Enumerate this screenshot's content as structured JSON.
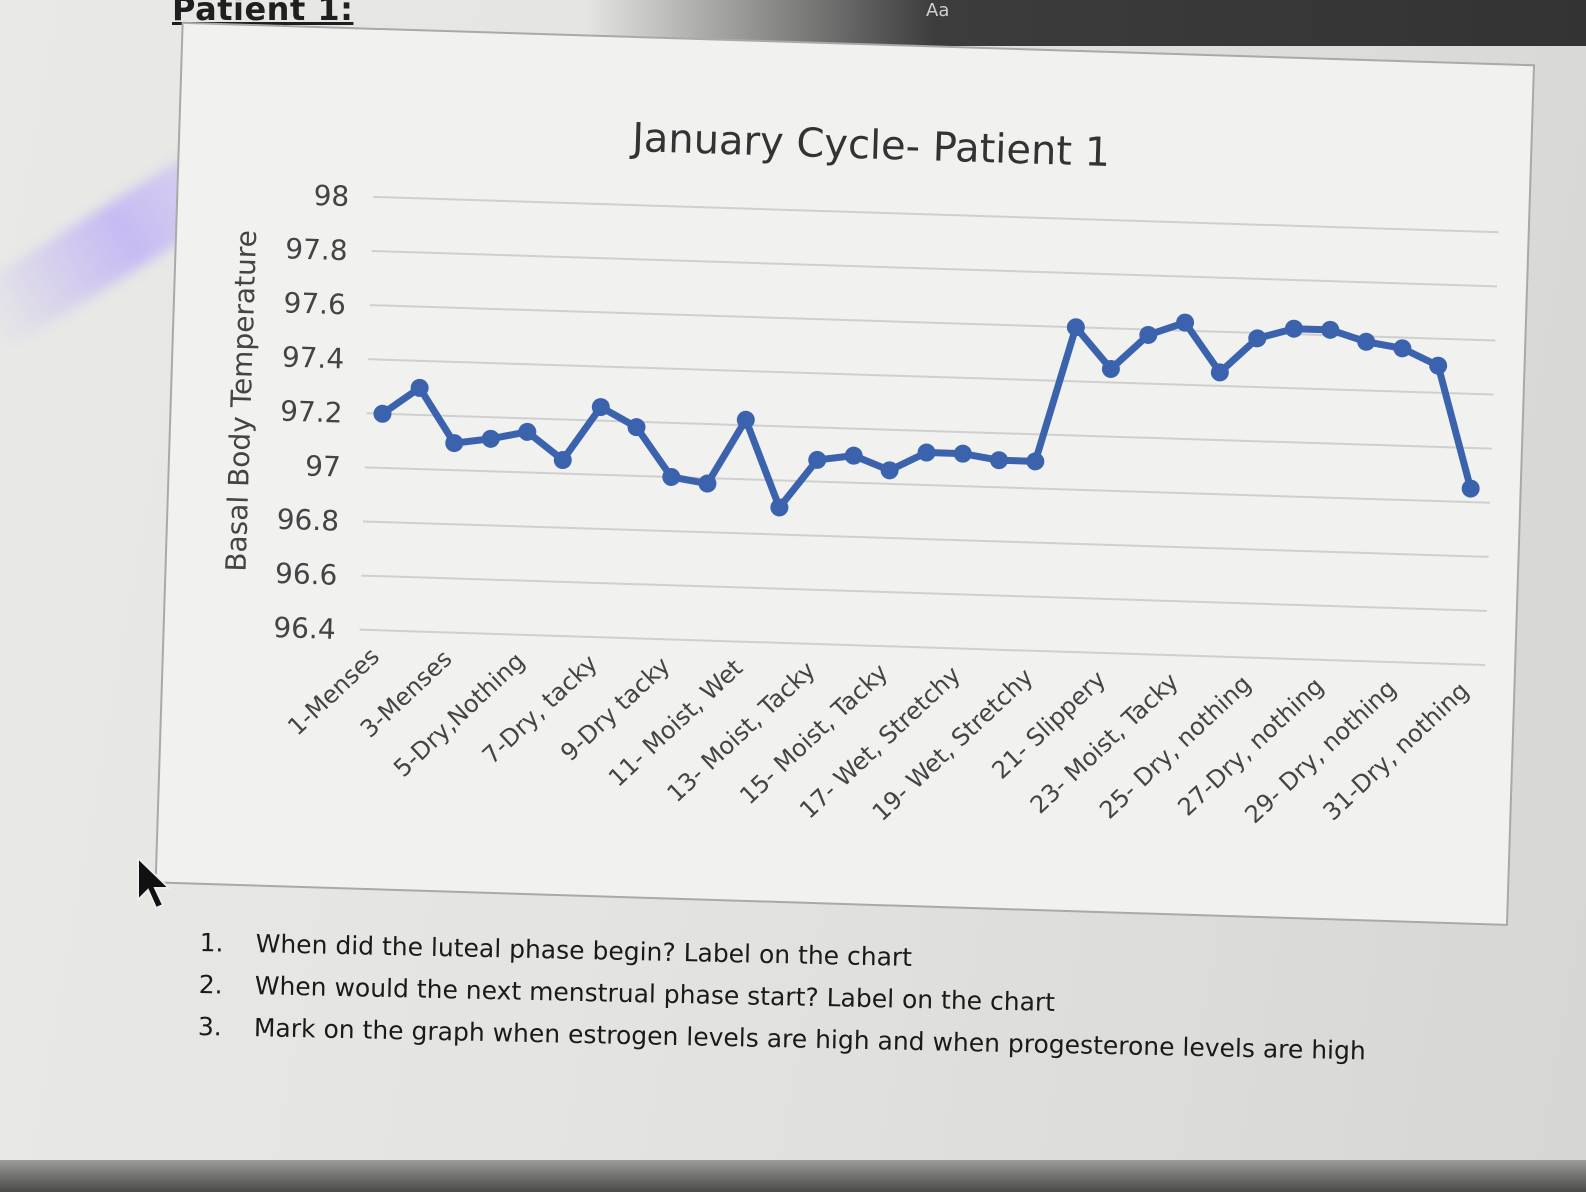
{
  "page": {
    "heading": "Patient 1:",
    "toolbar_text": "Aa"
  },
  "chart_data": {
    "type": "line",
    "title": "January Cycle- Patient 1",
    "ylabel": "Basal Body Temperature",
    "xlabel": "",
    "ylim": [
      96.4,
      98
    ],
    "yticks": [
      96.4,
      96.6,
      96.8,
      97,
      97.2,
      97.4,
      97.6,
      97.8,
      98
    ],
    "grid": true,
    "line_color": "#3a62ad",
    "x_tick_labels": [
      "1-Menses",
      "3-Menses",
      "5-Dry,Nothing",
      "7-Dry, tacky",
      "9-Dry tacky",
      "11- Moist, Wet",
      "13- Moist, Tacky",
      "15- Moist, Tacky",
      "17- Wet, Stretchy",
      "19- Wet, Stretchy",
      "21- Slippery",
      "23- Moist, Tacky",
      "25- Dry, nothing",
      "27-Dry, nothing",
      "29- Dry, nothing",
      "31-Dry, nothing"
    ],
    "x": [
      1,
      2,
      3,
      4,
      5,
      6,
      7,
      8,
      9,
      10,
      11,
      12,
      13,
      14,
      15,
      16,
      17,
      18,
      19,
      20,
      21,
      22,
      23,
      24,
      25,
      26,
      27,
      28,
      29,
      30,
      31
    ],
    "values": [
      97.2,
      97.3,
      97.1,
      97.12,
      97.15,
      97.05,
      97.25,
      97.18,
      97.0,
      96.98,
      97.22,
      96.9,
      97.08,
      97.1,
      97.05,
      97.12,
      97.12,
      97.1,
      97.1,
      97.6,
      97.45,
      97.58,
      97.63,
      97.45,
      97.58,
      97.62,
      97.62,
      97.58,
      97.56,
      97.5,
      97.05
    ]
  },
  "questions": [
    {
      "num": "1.",
      "text": "When did the luteal phase begin? Label on the chart"
    },
    {
      "num": "2.",
      "text": "When would the next menstrual phase start? Label on the chart"
    },
    {
      "num": "3.",
      "text": "Mark on the graph when estrogen levels are high and when progesterone levels are high"
    }
  ]
}
